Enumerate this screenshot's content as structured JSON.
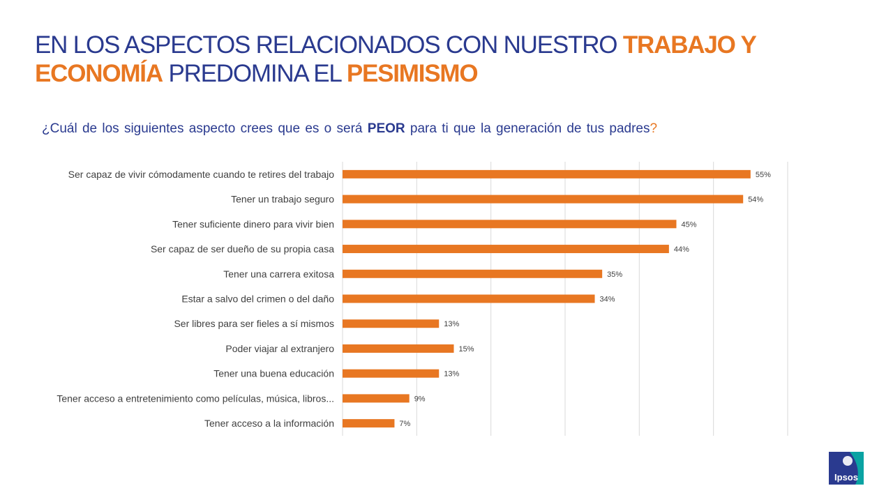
{
  "title": {
    "part1": "EN LOS ASPECTOS RELACIONADOS CON NUESTRO",
    "highlight1": "TRABAJO Y ECONOMÍA",
    "part2": "PREDOMINA EL",
    "highlight2": "PESIMISMO"
  },
  "question": {
    "before": "¿Cuál de los siguientes aspecto crees que es o será",
    "bold": "PEOR",
    "after": "para ti que la generación de tus padres",
    "mark": "?"
  },
  "chart_data": {
    "type": "bar",
    "orientation": "horizontal",
    "categories": [
      "Ser capaz de vivir cómodamente cuando te retires del trabajo",
      "Tener un trabajo seguro",
      "Tener suficiente dinero para vivir bien",
      "Ser capaz de ser dueño de su propia casa",
      "Tener una carrera exitosa",
      "Estar a salvo del crimen o del daño",
      "Ser libres para ser fieles a sí mismos",
      "Poder viajar al extranjero",
      "Tener una buena educación",
      "Tener acceso a entretenimiento como películas, música, libros...",
      "Tener acceso a la información"
    ],
    "values": [
      55,
      54,
      45,
      44,
      35,
      34,
      13,
      15,
      13,
      9,
      7
    ],
    "value_labels": [
      "55%",
      "54%",
      "45%",
      "44%",
      "35%",
      "34%",
      "13%",
      "15%",
      "13%",
      "9%",
      "7%"
    ],
    "xlim": [
      0,
      60
    ],
    "grid": "vertical",
    "bar_color": "#e87722",
    "grid_color": "#d9d9d9"
  },
  "logo": {
    "text": "Ipsos",
    "color": "#2a3a8f",
    "accent": "#0aa3a3"
  }
}
